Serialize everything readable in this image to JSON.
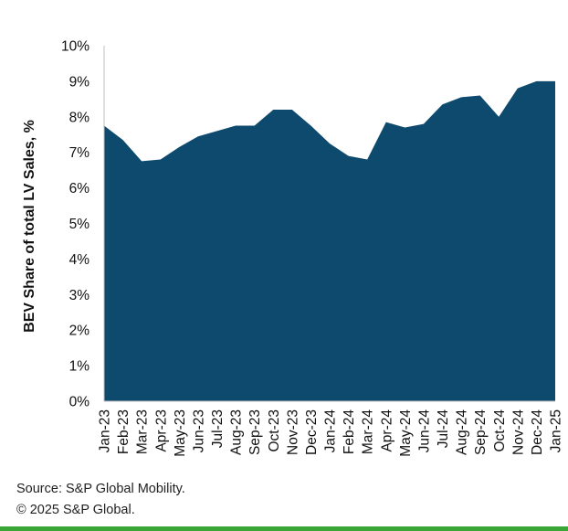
{
  "chart_data": {
    "type": "area",
    "title": "",
    "xlabel": "",
    "ylabel": "BEV Share of total LV Sales, %",
    "ylim": [
      0,
      10
    ],
    "yticks": [
      "0%",
      "1%",
      "2%",
      "3%",
      "4%",
      "5%",
      "6%",
      "7%",
      "8%",
      "9%",
      "10%"
    ],
    "grid": false,
    "legend": "none",
    "categories": [
      "Jan-23",
      "Feb-23",
      "Mar-23",
      "Apr-23",
      "May-23",
      "Jun-23",
      "Jul-23",
      "Aug-23",
      "Sep-23",
      "Oct-23",
      "Nov-23",
      "Dec-23",
      "Jan-24",
      "Feb-24",
      "Mar-24",
      "Apr-24",
      "May-24",
      "Jun-24",
      "Jul-24",
      "Aug-24",
      "Sep-24",
      "Oct-24",
      "Nov-24",
      "Dec-24",
      "Jan-25"
    ],
    "values": [
      7.75,
      7.35,
      6.75,
      6.8,
      7.15,
      7.45,
      7.6,
      7.75,
      7.75,
      8.2,
      8.2,
      7.75,
      7.25,
      6.9,
      6.8,
      7.85,
      7.7,
      7.8,
      8.35,
      8.55,
      8.6,
      8.0,
      8.8,
      9.0,
      9.0
    ],
    "fill_color": "#0d4a6e"
  },
  "footer": {
    "source": "Source: S&P Global Mobility.",
    "copyright": "© 2025 S&P Global."
  }
}
